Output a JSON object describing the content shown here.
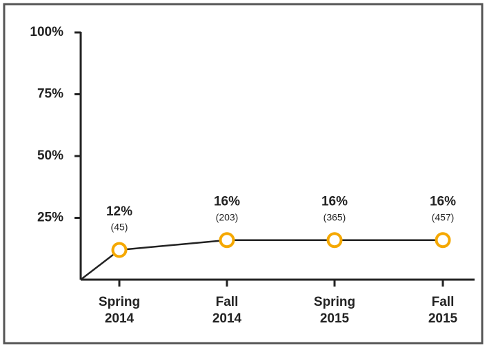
{
  "chart_data": {
    "type": "line",
    "categories": [
      "Spring 2014",
      "Fall 2014",
      "Spring 2015",
      "Fall 2015"
    ],
    "values": [
      12,
      16,
      16,
      16
    ],
    "value_labels": [
      "12%",
      "16%",
      "16%",
      "16%"
    ],
    "count_labels": [
      "(45)",
      "(203)",
      "(365)",
      "(457)"
    ],
    "color": "#222222",
    "marker_color": "#f5a800",
    "ylim": [
      0,
      100
    ],
    "yticks": [
      {
        "value": 25,
        "label": "25%"
      },
      {
        "value": 50,
        "label": "50%"
      },
      {
        "value": 75,
        "label": "75%"
      },
      {
        "value": 100,
        "label": "100%"
      }
    ],
    "grid": false
  }
}
